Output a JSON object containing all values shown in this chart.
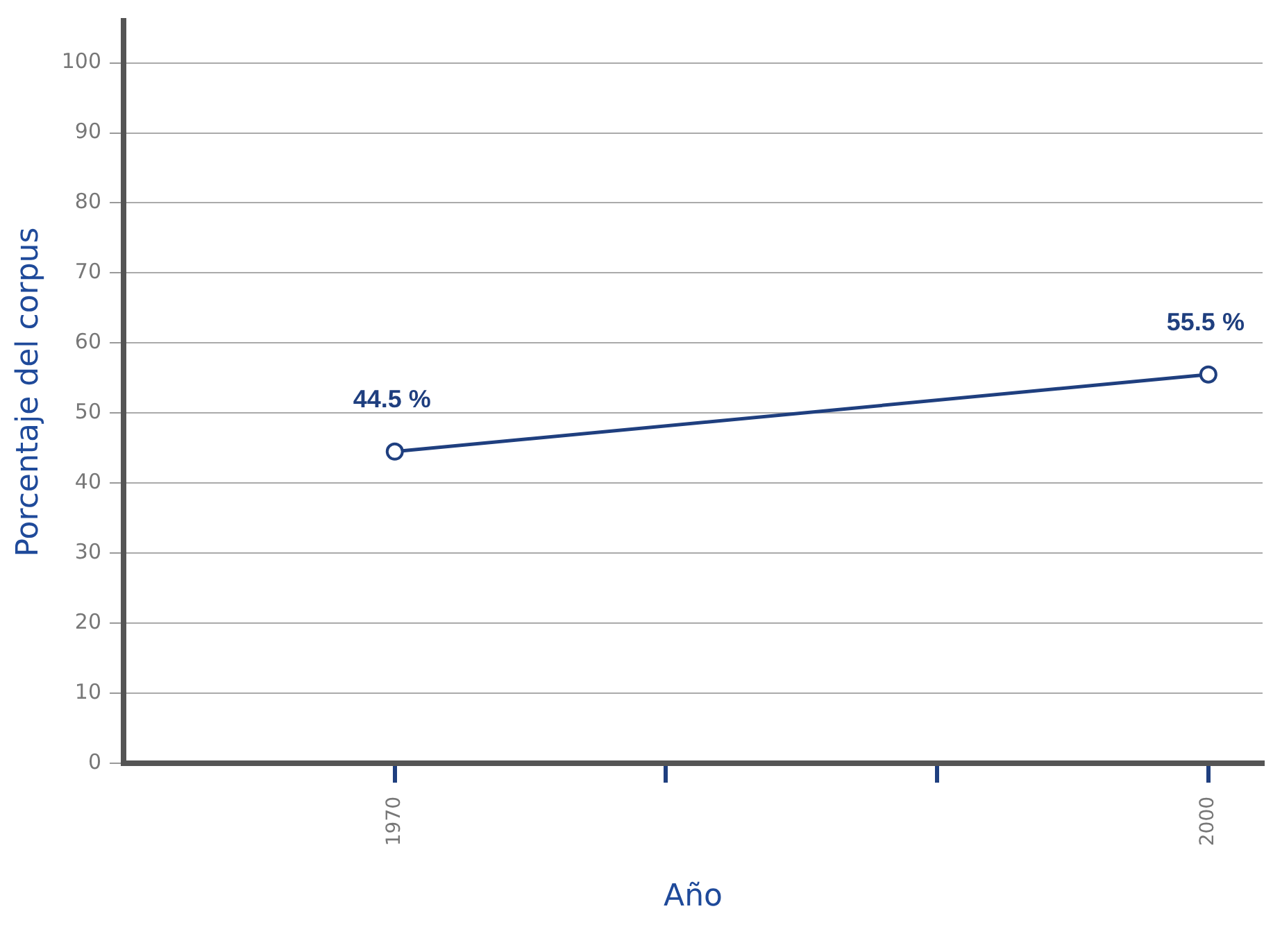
{
  "chart_data": {
    "type": "line",
    "xlabel": "Año",
    "ylabel": "Porcentaje del corpus",
    "x": [
      1970,
      2000
    ],
    "series": [
      {
        "color": "#1f3f7f",
        "values": [
          44.5,
          55.5
        ],
        "value_labels": [
          "44.5 %",
          "55.5 %"
        ]
      }
    ],
    "xlim": [
      1960,
      2002
    ],
    "xticks": [
      1970,
      {
        "value": 1980,
        "label": null
      },
      {
        "value": 1990,
        "label": null
      },
      2000
    ],
    "ylim": [
      0,
      106
    ],
    "yticks": [
      0,
      10,
      20,
      30,
      40,
      50,
      60,
      70,
      80,
      90,
      100
    ],
    "grid": "y",
    "marker": "circle",
    "line_style": "solid",
    "legend": false
  }
}
